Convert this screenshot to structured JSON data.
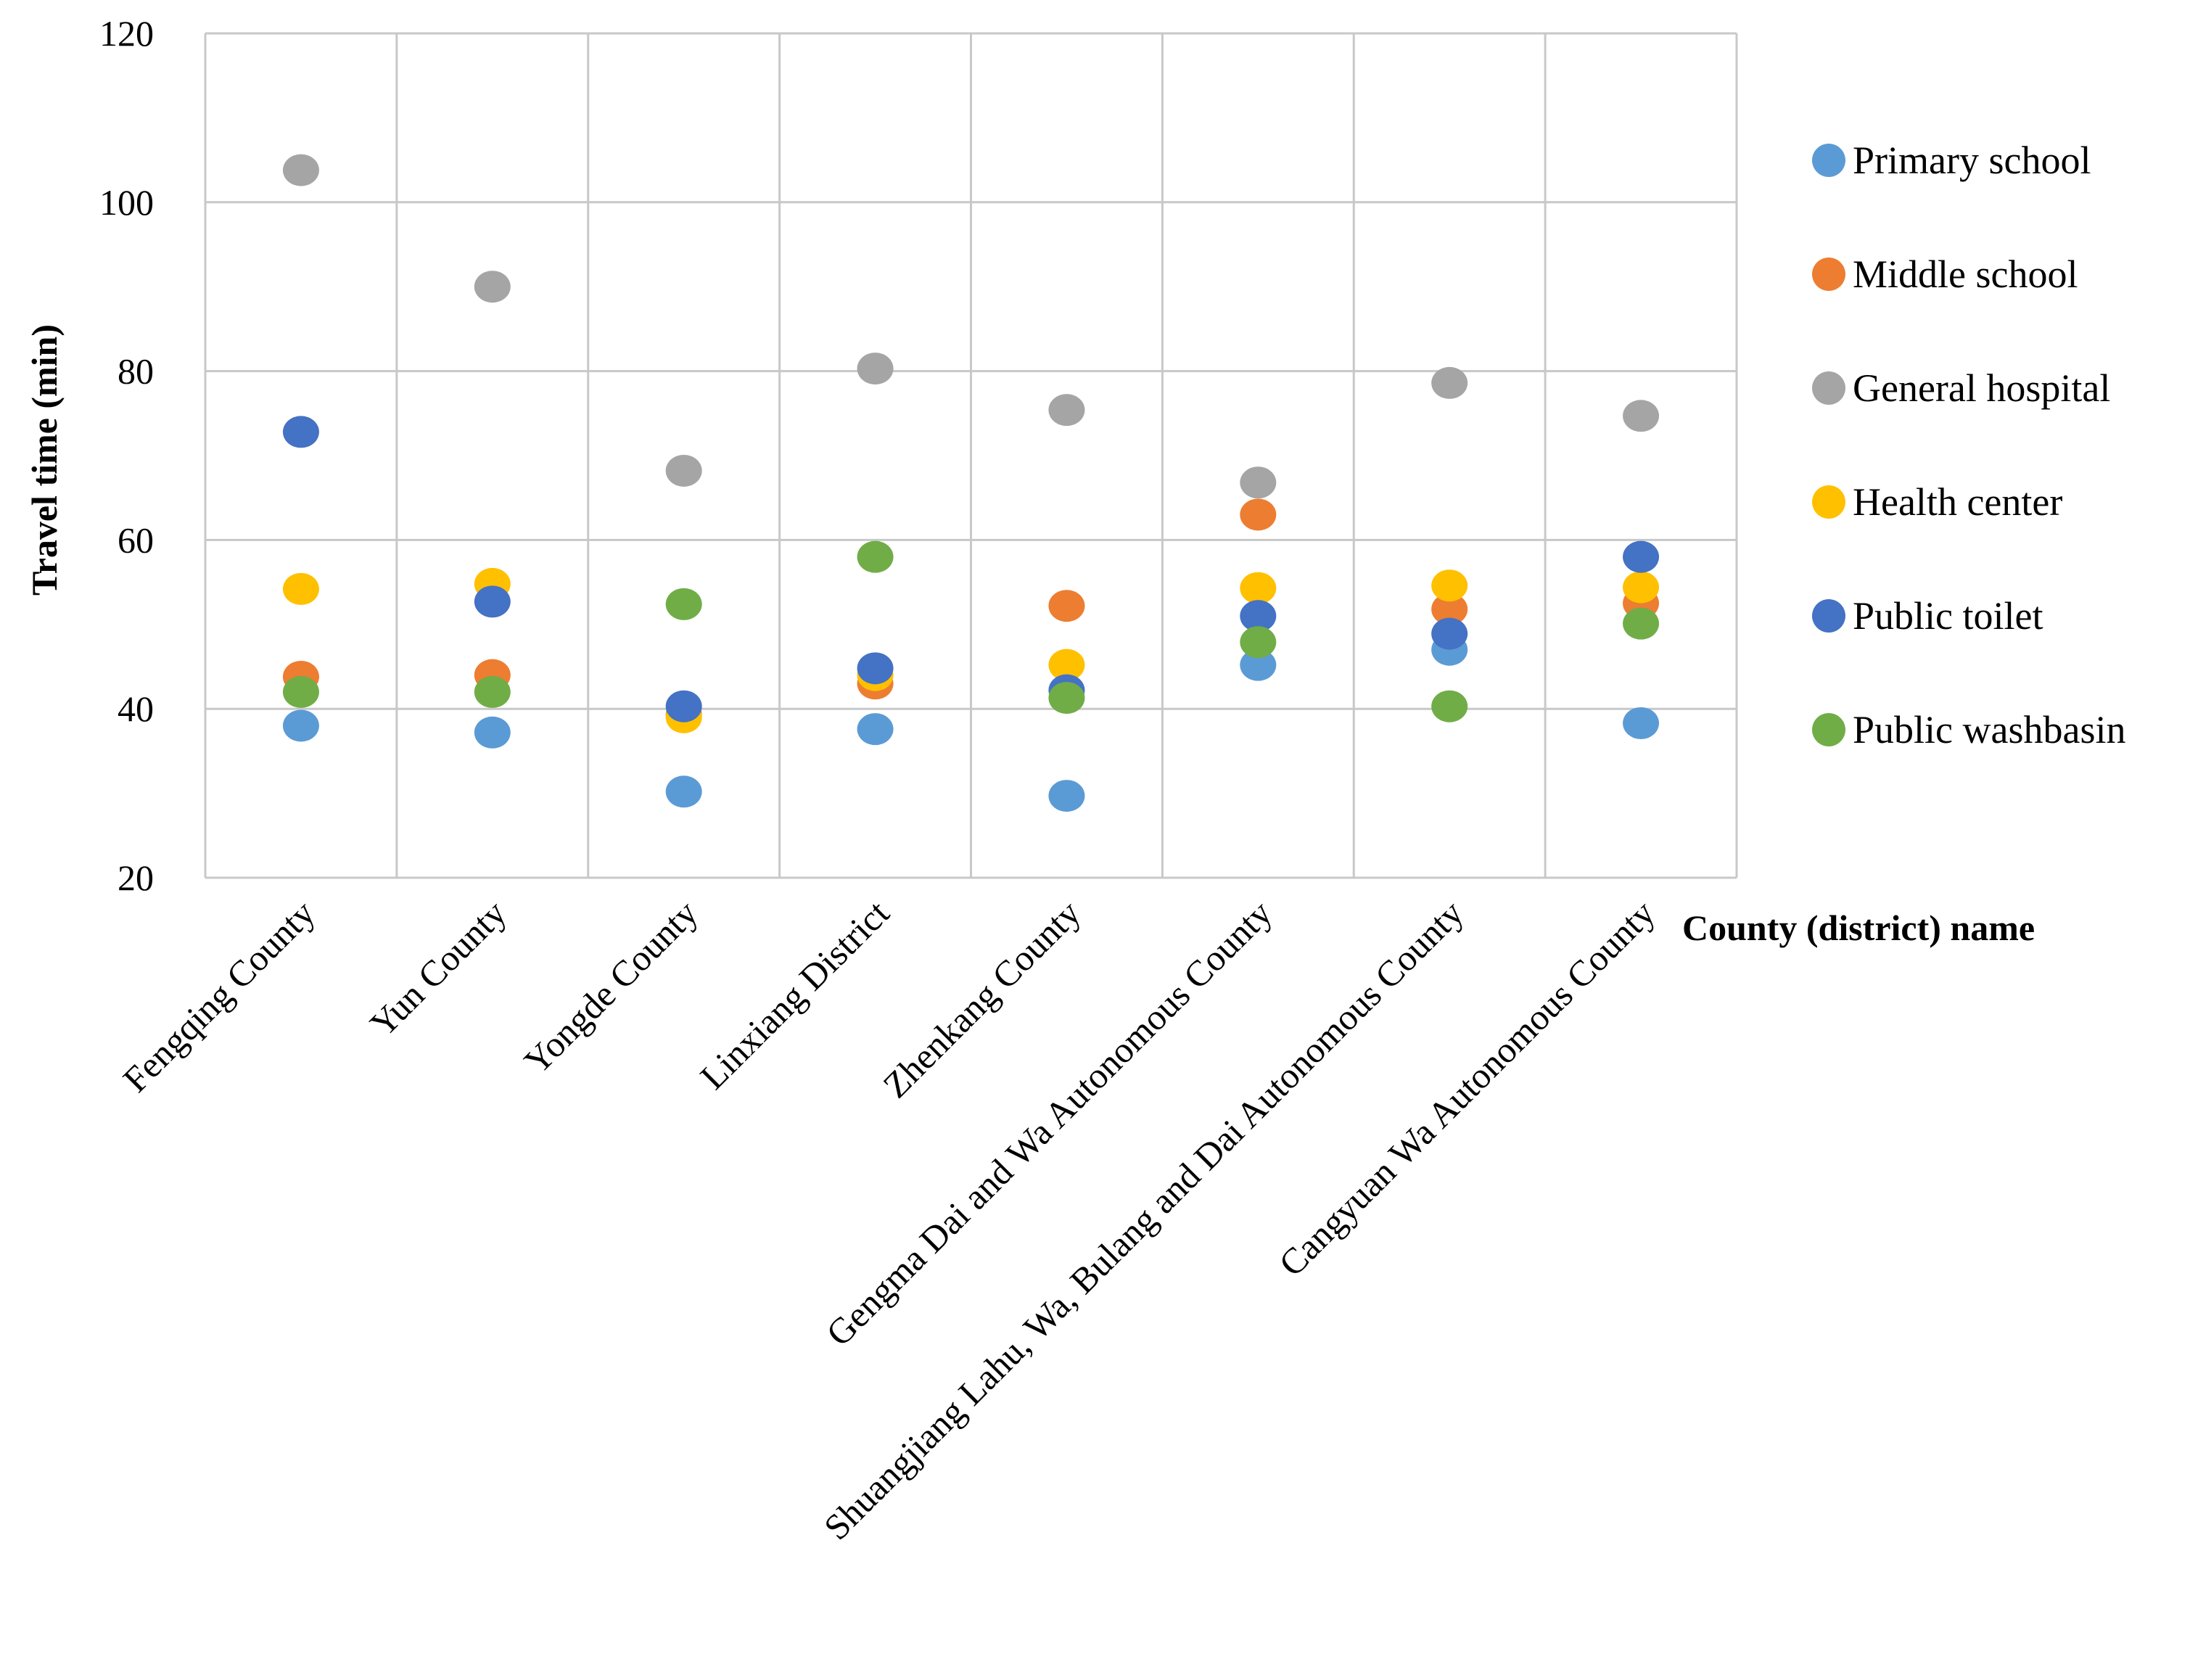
{
  "chart_data": {
    "type": "scatter",
    "title": "",
    "xlabel": "County (district) name",
    "ylabel": "Travel time (min)",
    "ylim": [
      20,
      120
    ],
    "yticks": [
      20,
      40,
      60,
      80,
      100,
      120
    ],
    "grid": true,
    "legend_position": "right",
    "categories": [
      "Fengqing County",
      "Yun County",
      "Yongde County",
      "Linxiang District",
      "Zhenkang County",
      "Gengma Dai and Wa Autonomous County",
      "Shuangjiang Lahu, Wa, Bulang and Dai Autonomous County",
      "Cangyuan Wa Autonomous County"
    ],
    "series": [
      {
        "name": "Primary school",
        "color": "#5B9BD5",
        "values": [
          38.0,
          37.2,
          30.2,
          37.6,
          29.7,
          45.2,
          47.0,
          38.3
        ]
      },
      {
        "name": "Middle school",
        "color": "#ED7D31",
        "values": [
          43.8,
          44.0,
          39.3,
          43.0,
          52.2,
          63.0,
          51.8,
          52.5
        ]
      },
      {
        "name": "General hospital",
        "color": "#A5A5A5",
        "values": [
          103.8,
          90.0,
          68.2,
          80.3,
          75.4,
          66.8,
          78.6,
          74.7
        ]
      },
      {
        "name": "Health center",
        "color": "#FFC000",
        "values": [
          54.2,
          54.8,
          39.0,
          44.0,
          45.2,
          54.3,
          54.6,
          54.4
        ]
      },
      {
        "name": "Public toilet",
        "color": "#4472C4",
        "values": [
          72.8,
          52.7,
          40.3,
          44.8,
          42.2,
          51.0,
          48.9,
          58.0
        ]
      },
      {
        "name": "Public washbasin",
        "color": "#70AD47",
        "values": [
          42.0,
          42.0,
          52.4,
          58.0,
          41.3,
          47.9,
          40.3,
          50.1
        ]
      }
    ]
  }
}
